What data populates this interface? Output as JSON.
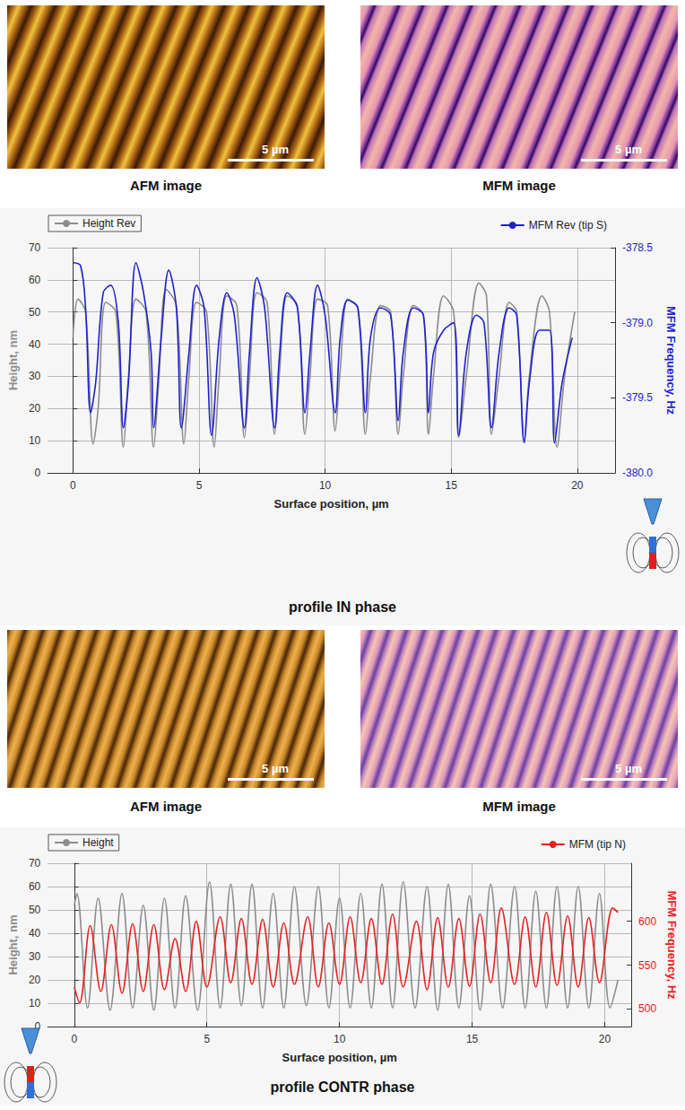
{
  "chart_data": [
    {
      "type": "line",
      "title": "profile IN phase",
      "x_label": "Surface position, µm",
      "y_label": "Height, nm",
      "y2_label": "MFM Frequency, Hz",
      "xlim": [
        -1,
        21.5
      ],
      "xticks": [
        0,
        5,
        10,
        15,
        20
      ],
      "ylim": [
        0,
        70
      ],
      "yticks": [
        0,
        10,
        20,
        30,
        40,
        50,
        60,
        70
      ],
      "y2lim": [
        -380,
        -378.5
      ],
      "y2ticks": [
        {
          "value": -380,
          "label": "-380.0"
        },
        -379.5,
        {
          "value": -379,
          "label": "-379.0"
        },
        -378.5
      ],
      "grid": true,
      "legend": "top",
      "series": [
        {
          "name": "Height Rev",
          "color": "#8c8c8c",
          "x": [
            0,
            0.2,
            0.5,
            0.8,
            1.0,
            1.3,
            1.7,
            2.0,
            2.2,
            2.5,
            2.9,
            3.2,
            3.4,
            3.7,
            4.1,
            4.4,
            4.6,
            4.9,
            5.3,
            5.6,
            5.8,
            6.1,
            6.5,
            6.8,
            7.0,
            7.3,
            7.7,
            8.0,
            8.2,
            8.5,
            8.9,
            9.2,
            9.4,
            9.7,
            10.1,
            10.4,
            10.6,
            10.9,
            11.3,
            11.6,
            11.8,
            12.2,
            12.6,
            12.9,
            13.1,
            13.5,
            13.9,
            14.1,
            14.3,
            14.7,
            15.1,
            15.3,
            15.6,
            16.1,
            16.4,
            16.6,
            16.9,
            17.3,
            17.6,
            17.9,
            18.1,
            18.6,
            18.9,
            19.2,
            19.5,
            19.9
          ],
          "values": [
            42,
            54,
            50,
            9,
            20,
            53,
            50,
            8,
            30,
            54,
            50,
            8,
            28,
            57,
            52,
            9,
            30,
            53,
            50,
            8,
            30,
            55,
            52,
            11,
            30,
            56,
            53,
            12,
            32,
            55,
            52,
            12,
            30,
            54,
            52,
            13,
            32,
            54,
            51,
            12,
            30,
            52,
            50,
            12,
            30,
            52,
            49,
            12,
            30,
            55,
            50,
            11,
            30,
            59,
            55,
            12,
            30,
            53,
            50,
            10,
            30,
            55,
            50,
            8,
            30,
            50
          ]
        },
        {
          "name": "MFM Rev (tip S)",
          "color": "#1f1fd0",
          "axis": "y2",
          "x": [
            0,
            0.3,
            0.5,
            0.7,
            0.9,
            1.2,
            1.5,
            1.8,
            2.0,
            2.2,
            2.5,
            2.8,
            3.1,
            3.2,
            3.5,
            3.8,
            4.1,
            4.3,
            4.6,
            4.9,
            5.2,
            5.5,
            5.8,
            6.1,
            6.4,
            6.8,
            7.0,
            7.3,
            7.6,
            8.0,
            8.2,
            8.5,
            8.9,
            9.2,
            9.4,
            9.7,
            10.0,
            10.4,
            10.6,
            10.9,
            11.3,
            11.6,
            11.8,
            12.2,
            12.6,
            12.9,
            13.1,
            13.5,
            13.9,
            14.1,
            14.3,
            14.7,
            15.1,
            15.3,
            15.6,
            16.0,
            16.3,
            16.6,
            16.9,
            17.3,
            17.6,
            17.9,
            18.1,
            18.5,
            18.9,
            19.1,
            19.4,
            19.8
          ],
          "values": [
            -378.6,
            -378.62,
            -378.9,
            -379.6,
            -379.4,
            -378.8,
            -378.75,
            -379.0,
            -379.7,
            -379.4,
            -378.6,
            -378.8,
            -379.2,
            -379.7,
            -379.1,
            -378.65,
            -378.9,
            -379.7,
            -379.2,
            -378.75,
            -378.9,
            -379.75,
            -379.1,
            -378.8,
            -378.95,
            -379.7,
            -379.2,
            -378.7,
            -378.9,
            -379.7,
            -379.2,
            -378.8,
            -378.9,
            -379.6,
            -379.2,
            -378.75,
            -378.95,
            -379.6,
            -379.1,
            -378.85,
            -378.9,
            -379.6,
            -379.1,
            -378.9,
            -378.95,
            -379.65,
            -379.2,
            -378.9,
            -378.95,
            -379.6,
            -379.2,
            -379.05,
            -379.0,
            -379.75,
            -379.2,
            -378.95,
            -379.0,
            -379.7,
            -379.2,
            -378.9,
            -378.95,
            -379.8,
            -379.4,
            -379.05,
            -379.05,
            -379.8,
            -379.4,
            -379.1
          ]
        }
      ]
    },
    {
      "type": "line",
      "title": "profile CONTR phase",
      "x_label": "Surface position, µm",
      "y_label": "Height, nm",
      "y2_label": "MFM Frequency, Hz",
      "xlim": [
        -1,
        21
      ],
      "xticks": [
        0,
        5,
        10,
        15,
        20
      ],
      "ylim": [
        0,
        70
      ],
      "yticks": [
        0,
        10,
        20,
        30,
        40,
        50,
        60,
        70
      ],
      "y2lim": [
        480,
        666
      ],
      "y2ticks": [
        500,
        550,
        600
      ],
      "grid": true,
      "legend": "top",
      "series": [
        {
          "name": "Height",
          "color": "#8c8c8c",
          "x": [
            0,
            0.1,
            0.5,
            0.9,
            1.35,
            1.8,
            2.2,
            2.6,
            3.0,
            3.4,
            3.8,
            4.2,
            4.65,
            5.1,
            5.5,
            5.9,
            6.3,
            6.7,
            7.1,
            7.5,
            7.9,
            8.3,
            8.75,
            9.2,
            9.6,
            10.0,
            10.4,
            10.8,
            11.2,
            11.6,
            12.0,
            12.4,
            12.85,
            13.3,
            13.7,
            14.1,
            14.5,
            14.9,
            15.3,
            15.7,
            16.15,
            16.6,
            17.0,
            17.4,
            17.8,
            18.2,
            18.6,
            19.0,
            19.4,
            19.8,
            20.2,
            20.5
          ],
          "values": [
            52,
            57,
            8,
            55,
            7,
            57,
            8,
            52,
            7,
            55,
            8,
            56,
            7,
            62,
            8,
            61,
            9,
            61,
            8,
            57,
            8,
            60,
            9,
            60,
            8,
            55,
            8,
            57,
            8,
            61,
            8,
            62,
            8,
            60,
            7,
            61,
            8,
            56,
            7,
            61,
            8,
            60,
            8,
            58,
            8,
            60,
            8,
            60,
            8,
            57,
            8,
            20
          ]
        },
        {
          "name": "MFM (tip N)",
          "color": "#e82020",
          "axis": "y2",
          "x": [
            0,
            0.2,
            0.6,
            1.0,
            1.4,
            1.8,
            2.2,
            2.6,
            3.0,
            3.4,
            3.8,
            4.2,
            4.6,
            5.0,
            5.5,
            5.9,
            6.3,
            6.7,
            7.1,
            7.5,
            7.9,
            8.3,
            8.8,
            9.2,
            9.6,
            10.0,
            10.4,
            10.8,
            11.2,
            11.6,
            12.0,
            12.4,
            12.9,
            13.3,
            13.7,
            14.1,
            14.5,
            14.9,
            15.3,
            15.7,
            16.1,
            16.6,
            17.0,
            17.4,
            17.8,
            18.2,
            18.6,
            19.0,
            19.4,
            19.8,
            20.3,
            20.5
          ],
          "values": [
            525,
            507,
            595,
            520,
            596,
            518,
            597,
            520,
            596,
            522,
            580,
            520,
            600,
            525,
            605,
            530,
            603,
            528,
            602,
            525,
            598,
            528,
            605,
            525,
            598,
            528,
            605,
            530,
            603,
            528,
            608,
            525,
            600,
            522,
            604,
            525,
            603,
            526,
            608,
            530,
            615,
            528,
            605,
            525,
            610,
            527,
            606,
            525,
            604,
            530,
            615,
            610
          ]
        }
      ]
    }
  ],
  "image_rows": [
    {
      "images": [
        {
          "label": "AFM image",
          "scale_bar": "5 µm"
        },
        {
          "label": "MFM image",
          "scale_bar": "5 µm"
        }
      ]
    },
    {
      "images": [
        {
          "label": "AFM image",
          "scale_bar": "5 µm"
        },
        {
          "label": "MFM image",
          "scale_bar": "5 µm"
        }
      ]
    }
  ]
}
